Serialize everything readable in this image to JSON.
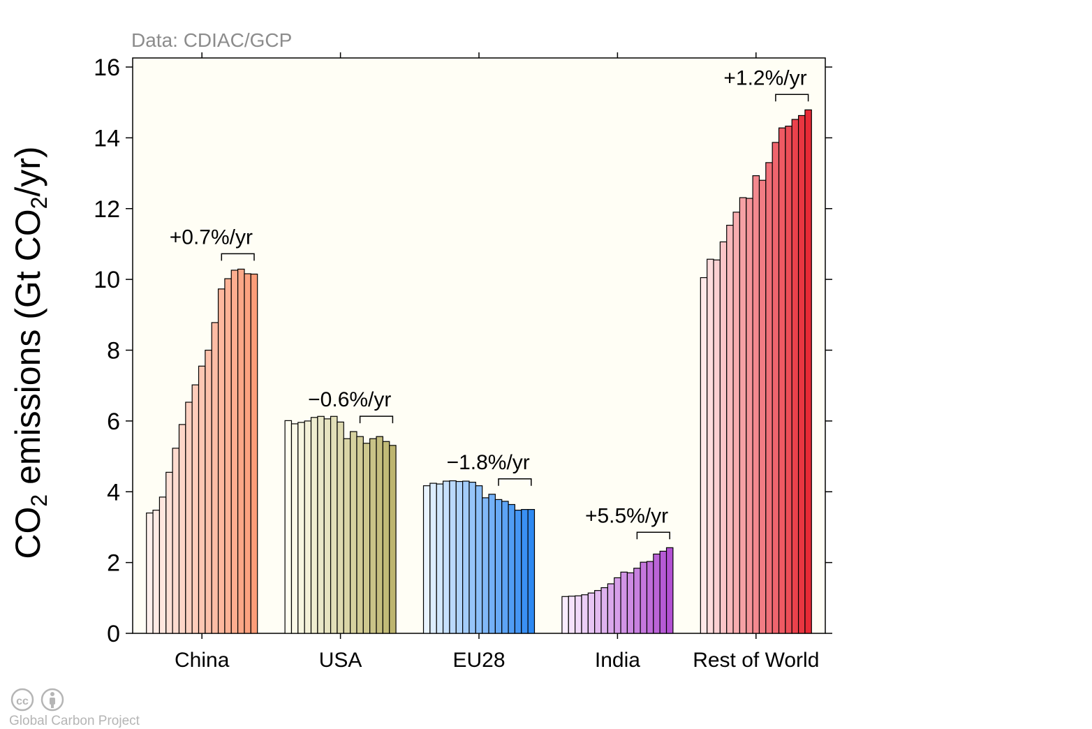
{
  "chart_data": {
    "type": "bar",
    "source": "Data: CDIAC/GCP",
    "ylabel": {
      "prefix": "CO",
      "sub": "2",
      "middle": " emissions (Gt CO",
      "sub2": "2",
      "suffix": "/yr)"
    },
    "ylim": [
      0,
      16
    ],
    "yticks": [
      0,
      2,
      4,
      6,
      8,
      10,
      12,
      14,
      16
    ],
    "grid": false,
    "background": "#fffef5",
    "groups": [
      {
        "name": "China",
        "growth": "+0.7%/yr",
        "color_start": "#fff0ec",
        "color_end": "#fc9d79",
        "values": [
          3.4,
          3.48,
          3.85,
          4.55,
          5.23,
          5.9,
          6.53,
          7.02,
          7.55,
          8.0,
          8.78,
          9.73,
          10.02,
          10.26,
          10.29,
          10.16,
          10.15
        ]
      },
      {
        "name": "USA",
        "growth": "−0.6%/yr",
        "color_start": "#fffff0",
        "color_end": "#bdb56f",
        "values": [
          6.01,
          5.92,
          5.96,
          6.0,
          6.1,
          6.13,
          6.06,
          6.13,
          5.97,
          5.5,
          5.7,
          5.56,
          5.37,
          5.5,
          5.56,
          5.42,
          5.31
        ]
      },
      {
        "name": "EU28",
        "growth": "−1.8%/yr",
        "color_start": "#e9f4ff",
        "color_end": "#2e89f2",
        "values": [
          4.17,
          4.24,
          4.22,
          4.3,
          4.31,
          4.29,
          4.3,
          4.27,
          4.17,
          3.83,
          3.93,
          3.78,
          3.73,
          3.64,
          3.48,
          3.5,
          3.5
        ]
      },
      {
        "name": "India",
        "growth": "+5.5%/yr",
        "color_start": "#f9ecff",
        "color_end": "#b250d2",
        "values": [
          1.04,
          1.05,
          1.06,
          1.09,
          1.14,
          1.21,
          1.29,
          1.4,
          1.57,
          1.73,
          1.71,
          1.84,
          2.01,
          2.03,
          2.24,
          2.32,
          2.42
        ]
      },
      {
        "name": "Rest of World",
        "growth": "+1.2%/yr",
        "color_start": "#ffe8e8",
        "color_end": "#e82a36",
        "values": [
          10.05,
          10.57,
          10.55,
          11.06,
          11.53,
          11.9,
          12.31,
          12.29,
          12.93,
          12.8,
          13.3,
          13.87,
          14.28,
          14.33,
          14.52,
          14.63,
          14.79
        ]
      }
    ]
  },
  "credit": {
    "text": "Global Carbon Project",
    "icons": [
      "cc-icon",
      "attribution-icon"
    ]
  }
}
